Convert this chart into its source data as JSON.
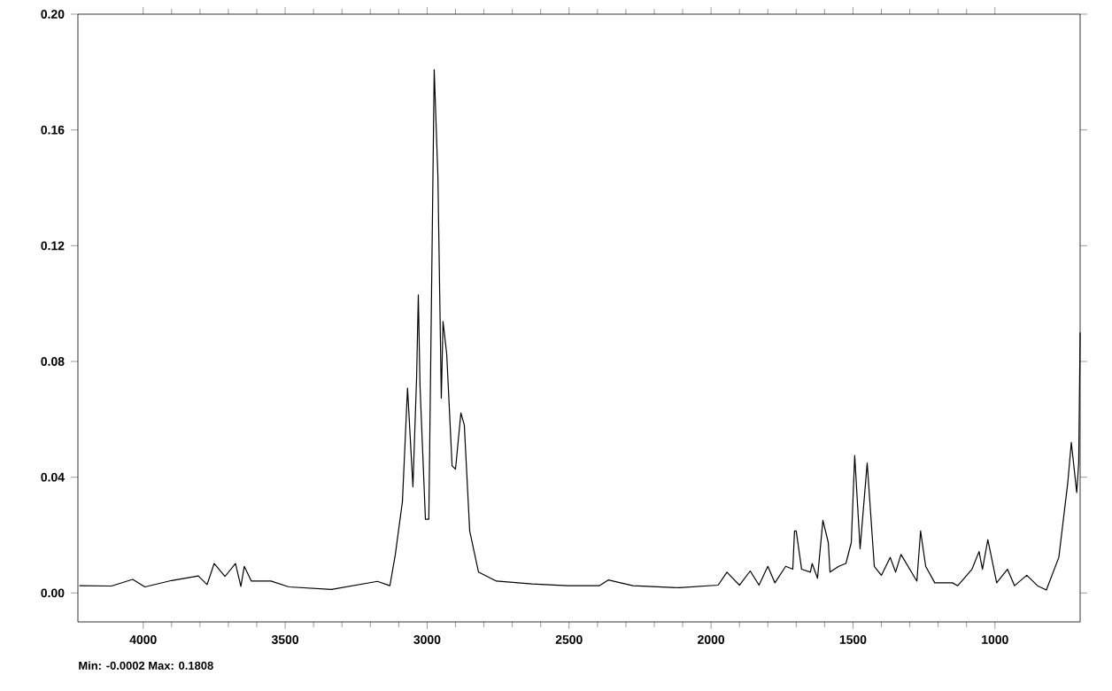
{
  "chart_data": {
    "type": "line",
    "color": "#000000",
    "grid": false,
    "marker": "none",
    "xlim": [
      4230,
      700
    ],
    "ylim": [
      -0.01,
      0.2
    ],
    "xticks": [
      4000,
      3500,
      3000,
      2500,
      2000,
      1500,
      1000
    ],
    "yticks": [
      {
        "value": 0,
        "label": "0.00"
      },
      0.04,
      {
        "value": 0.08,
        "label": "0.08"
      },
      0.12,
      0.16,
      {
        "value": 0.2,
        "label": "0.20"
      }
    ],
    "annotations": [
      "Min: -0.0002  Max: 0.1808"
    ],
    "x": [
      4225,
      4112,
      4037,
      3994,
      3900,
      3806,
      3775,
      3750,
      3712,
      3675,
      3656,
      3644,
      3619,
      3550,
      3487,
      3337,
      3175,
      3131,
      3112,
      3087,
      3069,
      3050,
      3037,
      3031,
      3025,
      3006,
      2994,
      2987,
      2975,
      2962,
      2950,
      2944,
      2931,
      2912,
      2900,
      2881,
      2869,
      2850,
      2819,
      2756,
      2631,
      2506,
      2394,
      2362,
      2319,
      2275,
      2112,
      1975,
      1944,
      1900,
      1862,
      1831,
      1800,
      1775,
      1737,
      1712,
      1706,
      1700,
      1681,
      1650,
      1644,
      1625,
      1606,
      1587,
      1581,
      1550,
      1525,
      1506,
      1494,
      1481,
      1475,
      1450,
      1425,
      1400,
      1369,
      1350,
      1331,
      1275,
      1262,
      1244,
      1212,
      1150,
      1131,
      1081,
      1056,
      1044,
      1025,
      994,
      956,
      931,
      888,
      850,
      819,
      775,
      744,
      731,
      712,
      705,
      700
    ],
    "values": [
      0.0025,
      0.0024,
      0.0047,
      0.0021,
      0.0043,
      0.0059,
      0.0029,
      0.0102,
      0.0057,
      0.0102,
      0.0023,
      0.0092,
      0.0041,
      0.0041,
      0.0021,
      0.0012,
      0.004,
      0.0025,
      0.0133,
      0.0316,
      0.0708,
      0.0367,
      0.0745,
      0.103,
      0.0715,
      0.0255,
      0.0255,
      0.0826,
      0.1808,
      0.1438,
      0.0673,
      0.0938,
      0.0826,
      0.0439,
      0.0428,
      0.0622,
      0.058,
      0.0214,
      0.0072,
      0.0041,
      0.0031,
      0.0025,
      0.0025,
      0.0045,
      0.0035,
      0.0025,
      0.0018,
      0.0027,
      0.0072,
      0.0027,
      0.0076,
      0.0027,
      0.0092,
      0.0035,
      0.0092,
      0.0082,
      0.0214,
      0.0214,
      0.0082,
      0.0072,
      0.0102,
      0.0051,
      0.0251,
      0.0174,
      0.0072,
      0.0092,
      0.0102,
      0.0174,
      0.0475,
      0.0255,
      0.0153,
      0.0449,
      0.0092,
      0.0061,
      0.0123,
      0.0072,
      0.0133,
      0.0041,
      0.0214,
      0.0092,
      0.0035,
      0.0035,
      0.0025,
      0.0082,
      0.0143,
      0.0082,
      0.0184,
      0.0035,
      0.0082,
      0.0025,
      0.0061,
      0.0025,
      0.001,
      0.0123,
      0.0377,
      0.052,
      0.0347,
      0.045,
      0.09
    ]
  }
}
